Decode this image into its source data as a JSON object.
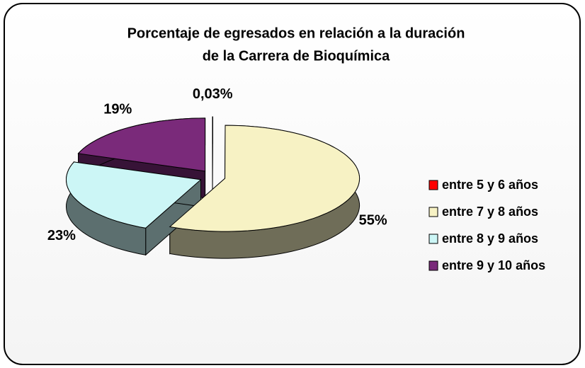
{
  "chart_data": {
    "type": "pie3d",
    "title": "Porcentaje de egresados en relación a la duración",
    "subtitle": "de la Carrera de Bioquímica",
    "categories": [
      "entre 5 y  6 años",
      "entre 7 y 8 años",
      "entre 8 y  9 años",
      "entre 9 y 10 años"
    ],
    "values": [
      0.03,
      55,
      23,
      19
    ],
    "value_labels": [
      "0,03%",
      "55%",
      "23%",
      "19%"
    ],
    "colors": [
      "#ff0000",
      "#f7f2c4",
      "#ccf6f6",
      "#7a2a7a"
    ],
    "legend": "right"
  }
}
